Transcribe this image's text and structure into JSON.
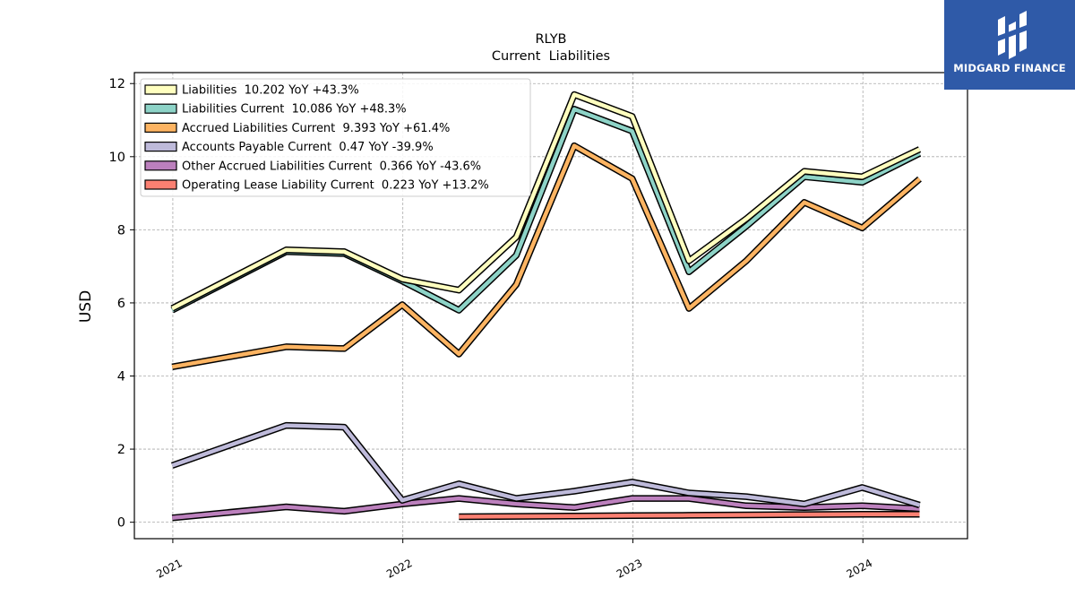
{
  "logo": {
    "text": "MIDGARD FINANCE"
  },
  "chart_data": {
    "type": "line",
    "title": "RLYB",
    "subtitle": "Current  Liabilities",
    "ylabel": "USD",
    "xlabel": "",
    "ylim": [
      -0.45,
      12.3
    ],
    "xlim": [
      "2020-11-01",
      "2024-06-15"
    ],
    "yticks": [
      0,
      2,
      4,
      6,
      8,
      10,
      12
    ],
    "xticks": [
      "2021",
      "2022",
      "2023",
      "2024"
    ],
    "xtick_dates": [
      "2021-01-01",
      "2022-01-01",
      "2023-01-01",
      "2024-01-01"
    ],
    "grid": true,
    "legend_position": "top-left",
    "series": [
      {
        "name": "Liabilities  10.202 YoY +43.3%",
        "color": "#ffffbf",
        "x": [
          "2020-12-31",
          "2021-06-30",
          "2021-09-30",
          "2021-12-31",
          "2022-03-31",
          "2022-06-30",
          "2022-09-30",
          "2022-12-31",
          "2023-03-31",
          "2023-06-30",
          "2023-09-30",
          "2023-12-31",
          "2024-03-31"
        ],
        "values": [
          5.85,
          7.45,
          7.4,
          6.65,
          6.35,
          7.8,
          11.7,
          11.1,
          7.15,
          8.3,
          9.6,
          9.45,
          10.2
        ]
      },
      {
        "name": "Liabilities Current  10.086 YoY +48.3%",
        "color": "#8dd3c7",
        "x": [
          "2020-12-31",
          "2021-06-30",
          "2021-09-30",
          "2021-12-31",
          "2022-03-31",
          "2022-06-30",
          "2022-09-30",
          "2022-12-31",
          "2023-03-31",
          "2023-06-30",
          "2023-09-30",
          "2023-12-31",
          "2024-03-31"
        ],
        "values": [
          5.8,
          7.4,
          7.35,
          6.6,
          5.8,
          7.3,
          11.3,
          10.7,
          6.85,
          8.1,
          9.45,
          9.3,
          10.09
        ]
      },
      {
        "name": "Accrued Liabilities Current  9.393 YoY +61.4%",
        "color": "#fdb462",
        "x": [
          "2020-12-31",
          "2021-06-30",
          "2021-09-30",
          "2021-12-31",
          "2022-03-31",
          "2022-06-30",
          "2022-09-30",
          "2022-12-31",
          "2023-03-31",
          "2023-06-30",
          "2023-09-30",
          "2023-12-31",
          "2024-03-31"
        ],
        "values": [
          4.25,
          4.8,
          4.75,
          5.95,
          4.6,
          6.5,
          10.3,
          9.4,
          5.85,
          7.15,
          8.75,
          8.05,
          9.39
        ]
      },
      {
        "name": "Accounts Payable Current  0.47 YoY -39.9%",
        "color": "#bebada",
        "x": [
          "2020-12-31",
          "2021-06-30",
          "2021-09-30",
          "2021-12-31",
          "2022-03-31",
          "2022-06-30",
          "2022-09-30",
          "2022-12-31",
          "2023-03-31",
          "2023-06-30",
          "2023-09-30",
          "2023-12-31",
          "2024-03-31"
        ],
        "values": [
          1.55,
          2.65,
          2.6,
          0.6,
          1.05,
          0.65,
          0.85,
          1.1,
          0.8,
          0.7,
          0.5,
          0.95,
          0.47
        ]
      },
      {
        "name": "Other Accrued Liabilities Current  0.366 YoY -43.6%",
        "color": "#bc80bd",
        "x": [
          "2020-12-31",
          "2021-06-30",
          "2021-09-30",
          "2021-12-31",
          "2022-03-31",
          "2022-06-30",
          "2022-09-30",
          "2022-12-31",
          "2023-03-31",
          "2023-06-30",
          "2023-09-30",
          "2023-12-31",
          "2024-03-31"
        ],
        "values": [
          0.12,
          0.42,
          0.3,
          0.5,
          0.65,
          0.5,
          0.4,
          0.65,
          0.65,
          0.45,
          0.4,
          0.45,
          0.37
        ]
      },
      {
        "name": "Operating Lease Liability Current  0.223 YoY +13.2%",
        "color": "#fb8072",
        "x": [
          "2022-03-31",
          "2022-06-30",
          "2022-09-30",
          "2022-12-31",
          "2023-03-31",
          "2023-06-30",
          "2023-09-30",
          "2023-12-31",
          "2024-03-31"
        ],
        "values": [
          0.15,
          0.16,
          0.17,
          0.18,
          0.19,
          0.2,
          0.21,
          0.22,
          0.22
        ]
      }
    ]
  }
}
